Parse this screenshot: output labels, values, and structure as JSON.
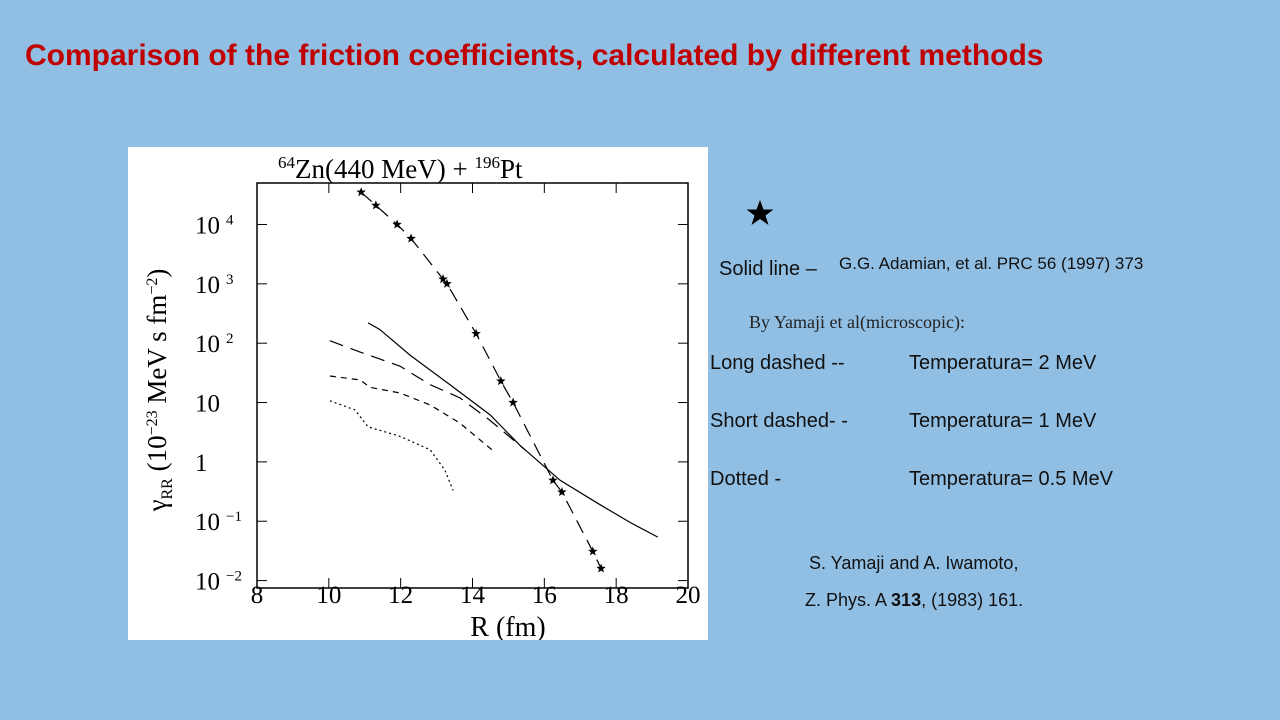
{
  "slide": {
    "title": "Comparison  of the friction coefficients, calculated by different methods",
    "solid_line": "Solid line –",
    "solid_ref": "G.G. Adamian, et al. PRC 56 (1997) 373",
    "yamaji_heading": "By Yamaji et al(microscopic):",
    "rows": [
      [
        "Long dashed --",
        "Temperatura= 2  MeV"
      ],
      [
        "Short dashed- -",
        "Temperatura= 1  MeV"
      ],
      [
        "Dotted -",
        "Temperatura= 0.5  MeV"
      ]
    ],
    "reference_line1": "S. Yamaji and A. Iwamoto,",
    "reference_line2": [
      "Z. Phys. A ",
      "313",
      ", (1983) 161."
    ]
  },
  "chart_data": {
    "type": "line",
    "title": [
      "64",
      "Zn(440 MeV)  +  ",
      "196",
      "Pt"
    ],
    "xlabel": "R (fm)",
    "ylabel": [
      "γ",
      "RR",
      " (10",
      "−23",
      " MeV s fm",
      "−2",
      ")"
    ],
    "xlim": [
      8,
      20
    ],
    "xticks": [
      8,
      10,
      12,
      14,
      16,
      18,
      20
    ],
    "ylim": [
      0.0075,
      50000
    ],
    "log_y": true,
    "yticks": [
      {
        "value": 0.01,
        "label": "10",
        "exponent": "−2"
      },
      {
        "value": 0.1,
        "label": "10",
        "exponent": "−1"
      },
      1,
      10,
      {
        "value": 100,
        "label": "10",
        "exponent": "2"
      },
      {
        "value": 1000,
        "label": "10",
        "exponent": "3"
      },
      {
        "value": 10000,
        "label": "10",
        "exponent": "4"
      }
    ],
    "series": [
      {
        "color": "#000000",
        "dash": "long",
        "marker": "star",
        "x": [
          10.9,
          11.31,
          11.9,
          12.29,
          13.18,
          13.29,
          14.1,
          14.79,
          15.13,
          16.24,
          16.49,
          17.35,
          17.58
        ],
        "values": [
          35000,
          21000,
          10000,
          5800,
          1200,
          1000,
          145,
          23,
          10,
          0.49,
          0.31,
          0.031,
          0.016
        ]
      },
      {
        "color": "#000000",
        "dash": "solid",
        "x": [
          11.09,
          11.42,
          12.26,
          13.37,
          14.49,
          15.32,
          16.44,
          17.55,
          18.38,
          19.16
        ],
        "values": [
          220,
          170,
          63,
          20,
          6.2,
          1.9,
          0.49,
          0.19,
          0.096,
          0.054
        ]
      },
      {
        "color": "#000000",
        "dash": "long",
        "x": [
          10.03,
          10.87,
          11.98,
          12.82,
          13.65,
          14.49,
          15.46
        ],
        "values": [
          110,
          71,
          41,
          20,
          12,
          5.0,
          1.6
        ]
      },
      {
        "color": "#000000",
        "dash": "short",
        "x": [
          10.03,
          10.87,
          11.15,
          11.98,
          12.82,
          13.65,
          14.54
        ],
        "values": [
          28,
          24,
          18,
          14.5,
          9.1,
          4.5,
          1.6
        ]
      },
      {
        "color": "#000000",
        "dash": "dotted",
        "x": [
          10.03,
          10.73,
          11.09,
          11.98,
          12.82,
          13.23,
          13.46
        ],
        "values": [
          10.7,
          7.5,
          3.9,
          2.7,
          1.6,
          0.73,
          0.33
        ]
      }
    ]
  }
}
